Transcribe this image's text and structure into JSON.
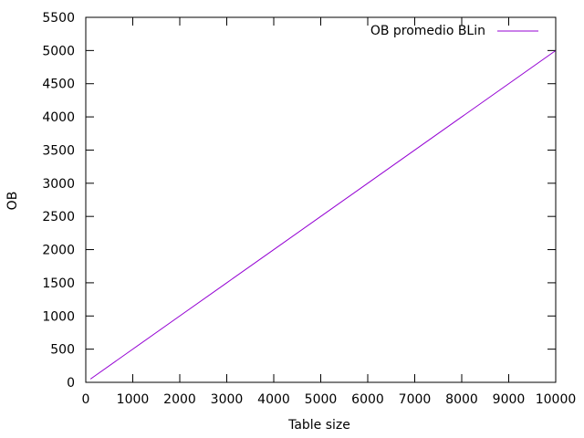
{
  "chart_data": {
    "type": "line",
    "title": "",
    "xlabel": "Table size",
    "ylabel": "OB",
    "xlim": [
      0,
      10000
    ],
    "ylim": [
      0,
      5500
    ],
    "x_ticks": [
      0,
      1000,
      2000,
      3000,
      4000,
      5000,
      6000,
      7000,
      8000,
      9000,
      10000
    ],
    "y_ticks": [
      0,
      500,
      1000,
      1500,
      2000,
      2500,
      3000,
      3500,
      4000,
      4500,
      5000,
      5500
    ],
    "grid": false,
    "legend_position": "top-right",
    "series": [
      {
        "name": "OB promedio BLin",
        "color": "#9400d3",
        "x": [
          100,
          1000,
          2000,
          3000,
          4000,
          5000,
          6000,
          7000,
          8000,
          9000,
          10000
        ],
        "y": [
          50,
          500,
          1000,
          1500,
          2000,
          2500,
          3000,
          3500,
          4000,
          4500,
          5000
        ]
      }
    ]
  }
}
